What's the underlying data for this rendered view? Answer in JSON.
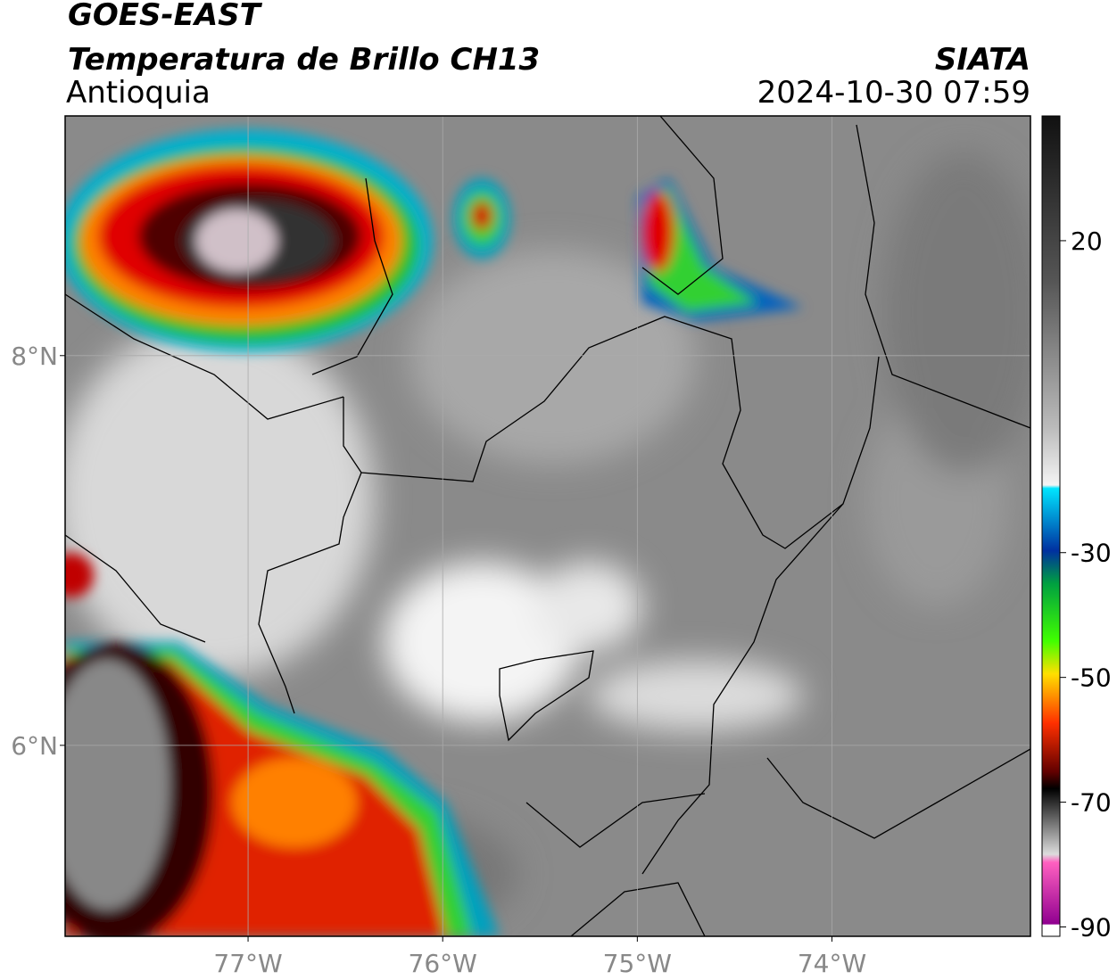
{
  "header": {
    "satellite": "GOES-EAST",
    "product": "Temperatura de Brillo CH13",
    "region": "Antioquia",
    "source": "SIATA",
    "datetime": "2024-10-30 07:59"
  },
  "map": {
    "xlim": [
      -77.94,
      -72.98
    ],
    "ylim": [
      5.02,
      9.23
    ],
    "xticks": [
      {
        "value": -77,
        "label": "77°W"
      },
      {
        "value": -76,
        "label": "76°W"
      },
      {
        "value": -75,
        "label": "75°W"
      },
      {
        "value": -74,
        "label": "74°W"
      }
    ],
    "yticks": [
      {
        "value": 8,
        "label": "8°N"
      },
      {
        "value": 6,
        "label": "6°N"
      }
    ],
    "grid": true
  },
  "colorbar": {
    "lim": [
      -91.5,
      40
    ],
    "ticks": [
      20,
      -30,
      -50,
      -70,
      -90
    ]
  }
}
